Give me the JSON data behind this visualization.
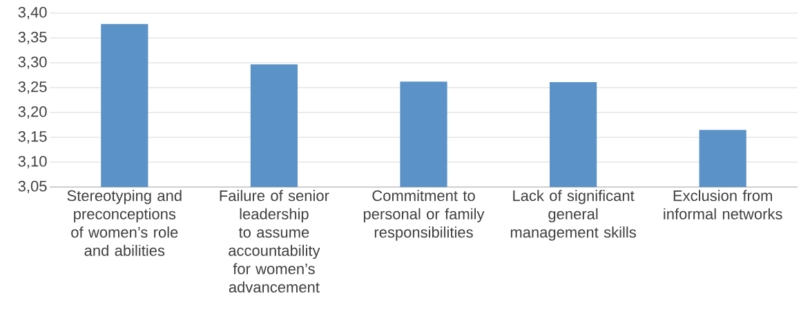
{
  "chart_data": {
    "type": "bar",
    "categories": [
      "Stereotyping and preconceptions of women’s role and abilities",
      "Failure of senior leadership to assume accountability for women’s advancement",
      "Commitment to personal or family responsibilities",
      "Lack of significant general management skills",
      "Exclusion from informal networks"
    ],
    "values": [
      3.378,
      3.297,
      3.262,
      3.261,
      3.165
    ],
    "color": "#5b93c8",
    "ylim": [
      3.05,
      3.4
    ],
    "yticks": [
      {
        "value": 3.05,
        "label": "3,05"
      },
      {
        "value": 3.1,
        "label": "3,10"
      },
      {
        "value": 3.15,
        "label": "3,15"
      },
      {
        "value": 3.2,
        "label": "3,20"
      },
      {
        "value": 3.25,
        "label": "3,25"
      },
      {
        "value": 3.3,
        "label": "3,30"
      },
      {
        "value": 3.35,
        "label": "3,35"
      },
      {
        "value": 3.4,
        "label": "3,40"
      }
    ],
    "grid": "y"
  }
}
